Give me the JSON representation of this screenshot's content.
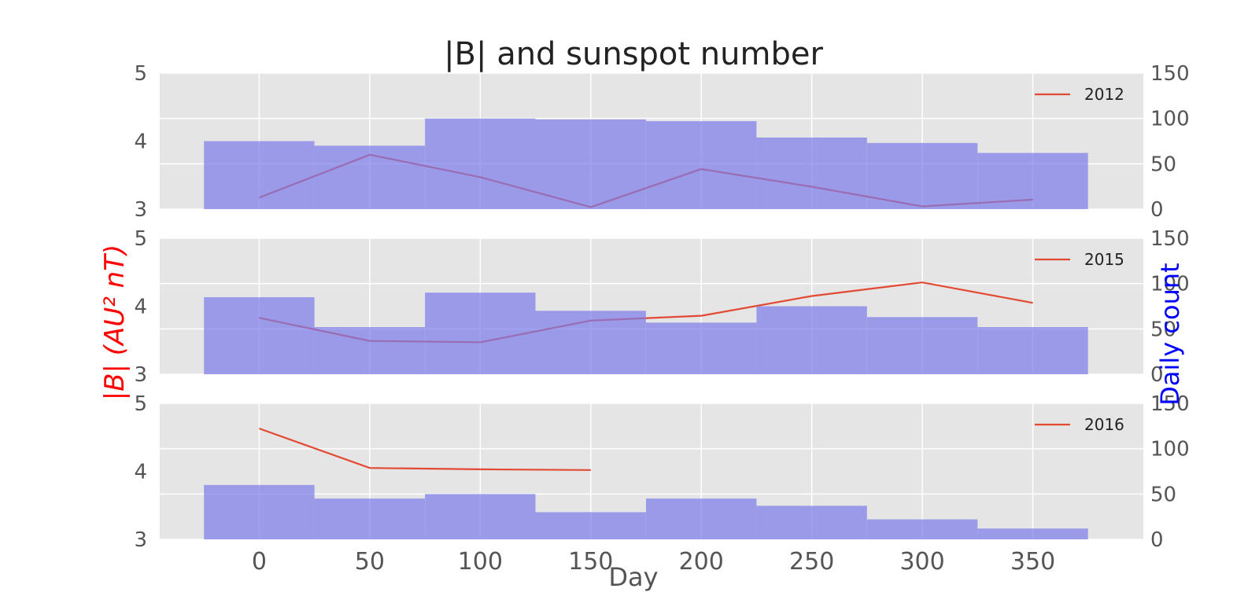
{
  "chart_data": {
    "type": "line",
    "title": "|B| and sunspot number",
    "xlabel": "Day",
    "ylabel_left": "|B| (AU² nT)",
    "ylabel_right": "Daily count",
    "xlim": [
      -45,
      400
    ],
    "x_ticks": [
      "0",
      "50",
      "100",
      "150",
      "200",
      "250",
      "300",
      "350"
    ],
    "ylim_left": [
      3,
      5
    ],
    "ylim_right": [
      0,
      150
    ],
    "y_ticks_left": [
      "3",
      "4",
      "5"
    ],
    "y_ticks_right": [
      "0",
      "50",
      "100",
      "150"
    ],
    "grid": true,
    "legend_position": "top-right",
    "colors": {
      "line": "#e24a33",
      "bars": "#7b7bea",
      "bars_opacity": 0.7,
      "panel_bg": "#e5e5e5",
      "grid": "#ffffff",
      "left_label": "#ff0000",
      "right_label": "#0000ff"
    },
    "bar_bins": [
      [
        -25,
        25
      ],
      [
        25,
        75
      ],
      [
        75,
        125
      ],
      [
        125,
        175
      ],
      [
        175,
        225
      ],
      [
        225,
        275
      ],
      [
        275,
        325
      ],
      [
        325,
        375
      ]
    ],
    "panels": [
      {
        "name": "2012",
        "x": [
          0,
          50,
          100,
          150,
          200,
          250,
          300,
          350
        ],
        "y": [
          3.17,
          3.8,
          3.47,
          3.03,
          3.59,
          3.33,
          3.04,
          3.14
        ],
        "bars": [
          75,
          70,
          100,
          99,
          97,
          79,
          73,
          62
        ]
      },
      {
        "name": "2015",
        "x": [
          0,
          50,
          100,
          150,
          200,
          250,
          300,
          350
        ],
        "y": [
          3.83,
          3.49,
          3.47,
          3.79,
          3.86,
          4.15,
          4.35,
          4.05
        ],
        "bars": [
          85,
          52,
          90,
          70,
          57,
          75,
          63,
          52
        ]
      },
      {
        "name": "2016",
        "x": [
          0,
          50,
          100,
          150
        ],
        "y": [
          4.63,
          4.05,
          4.03,
          4.02
        ],
        "bars": [
          60,
          45,
          50,
          30,
          45,
          37,
          22,
          12
        ]
      }
    ]
  }
}
